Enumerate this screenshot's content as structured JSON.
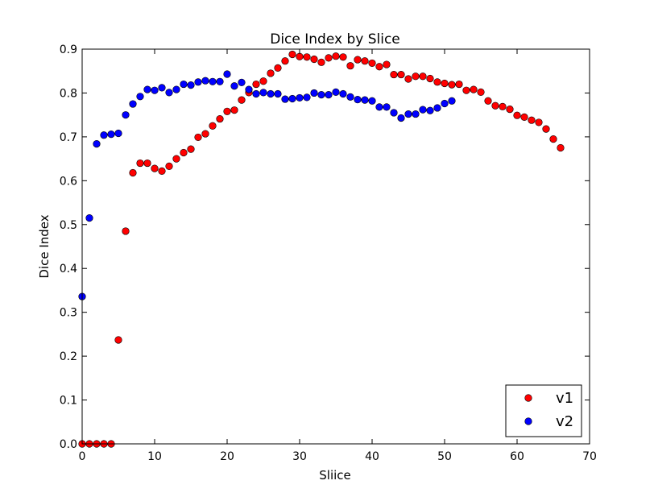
{
  "chart_data": {
    "type": "scatter",
    "title": "Dice Index by Slice",
    "xlabel": "Sliice",
    "ylabel": "Dice Index",
    "xlim": [
      0,
      70
    ],
    "ylim": [
      0,
      0.9
    ],
    "xticks": [
      0,
      10,
      20,
      30,
      40,
      50,
      60,
      70
    ],
    "yticks": [
      0.0,
      0.1,
      0.2,
      0.3,
      0.4,
      0.5,
      0.6,
      0.7,
      0.8,
      0.9
    ],
    "grid": false,
    "legend_position": "lower-right",
    "series": [
      {
        "name": "v1",
        "color": "#ff0000",
        "x": [
          0,
          1,
          2,
          3,
          4,
          5,
          6,
          7,
          8,
          9,
          10,
          11,
          12,
          13,
          14,
          15,
          16,
          17,
          18,
          19,
          20,
          21,
          22,
          23,
          24,
          25,
          26,
          27,
          28,
          29,
          30,
          31,
          32,
          33,
          34,
          35,
          36,
          37,
          38,
          39,
          40,
          41,
          42,
          43,
          44,
          45,
          46,
          47,
          48,
          49,
          50,
          51,
          52,
          53,
          54,
          55,
          56,
          57,
          58,
          59,
          60,
          61,
          62,
          63,
          64,
          65,
          66
        ],
        "y": [
          0.0,
          0.0,
          0.0,
          0.0,
          0.0,
          0.237,
          0.485,
          0.618,
          0.64,
          0.64,
          0.628,
          0.622,
          0.633,
          0.65,
          0.664,
          0.672,
          0.699,
          0.707,
          0.725,
          0.741,
          0.758,
          0.761,
          0.784,
          0.801,
          0.82,
          0.827,
          0.845,
          0.857,
          0.873,
          0.888,
          0.883,
          0.882,
          0.877,
          0.87,
          0.88,
          0.884,
          0.882,
          0.862,
          0.876,
          0.873,
          0.868,
          0.86,
          0.865,
          0.842,
          0.842,
          0.832,
          0.838,
          0.838,
          0.833,
          0.825,
          0.822,
          0.819,
          0.82,
          0.806,
          0.808,
          0.802,
          0.782,
          0.771,
          0.769,
          0.763,
          0.749,
          0.745,
          0.738,
          0.733,
          0.718,
          0.695,
          0.675
        ]
      },
      {
        "name": "v2",
        "color": "#0000ff",
        "x": [
          0,
          1,
          2,
          3,
          4,
          5,
          6,
          7,
          8,
          9,
          10,
          11,
          12,
          13,
          14,
          15,
          16,
          17,
          18,
          19,
          20,
          21,
          22,
          23,
          24,
          25,
          26,
          27,
          28,
          29,
          30,
          31,
          32,
          33,
          34,
          35,
          36,
          37,
          38,
          39,
          40,
          41,
          42,
          43,
          44,
          45,
          46,
          47,
          48,
          49,
          50,
          51
        ],
        "y": [
          0.336,
          0.515,
          0.684,
          0.704,
          0.706,
          0.708,
          0.75,
          0.775,
          0.792,
          0.808,
          0.806,
          0.812,
          0.801,
          0.808,
          0.82,
          0.818,
          0.825,
          0.828,
          0.826,
          0.826,
          0.843,
          0.816,
          0.824,
          0.808,
          0.798,
          0.801,
          0.798,
          0.798,
          0.786,
          0.787,
          0.789,
          0.79,
          0.8,
          0.796,
          0.796,
          0.802,
          0.798,
          0.791,
          0.785,
          0.784,
          0.782,
          0.768,
          0.768,
          0.755,
          0.743,
          0.752,
          0.752,
          0.762,
          0.76,
          0.766,
          0.776,
          0.782
        ]
      }
    ]
  }
}
